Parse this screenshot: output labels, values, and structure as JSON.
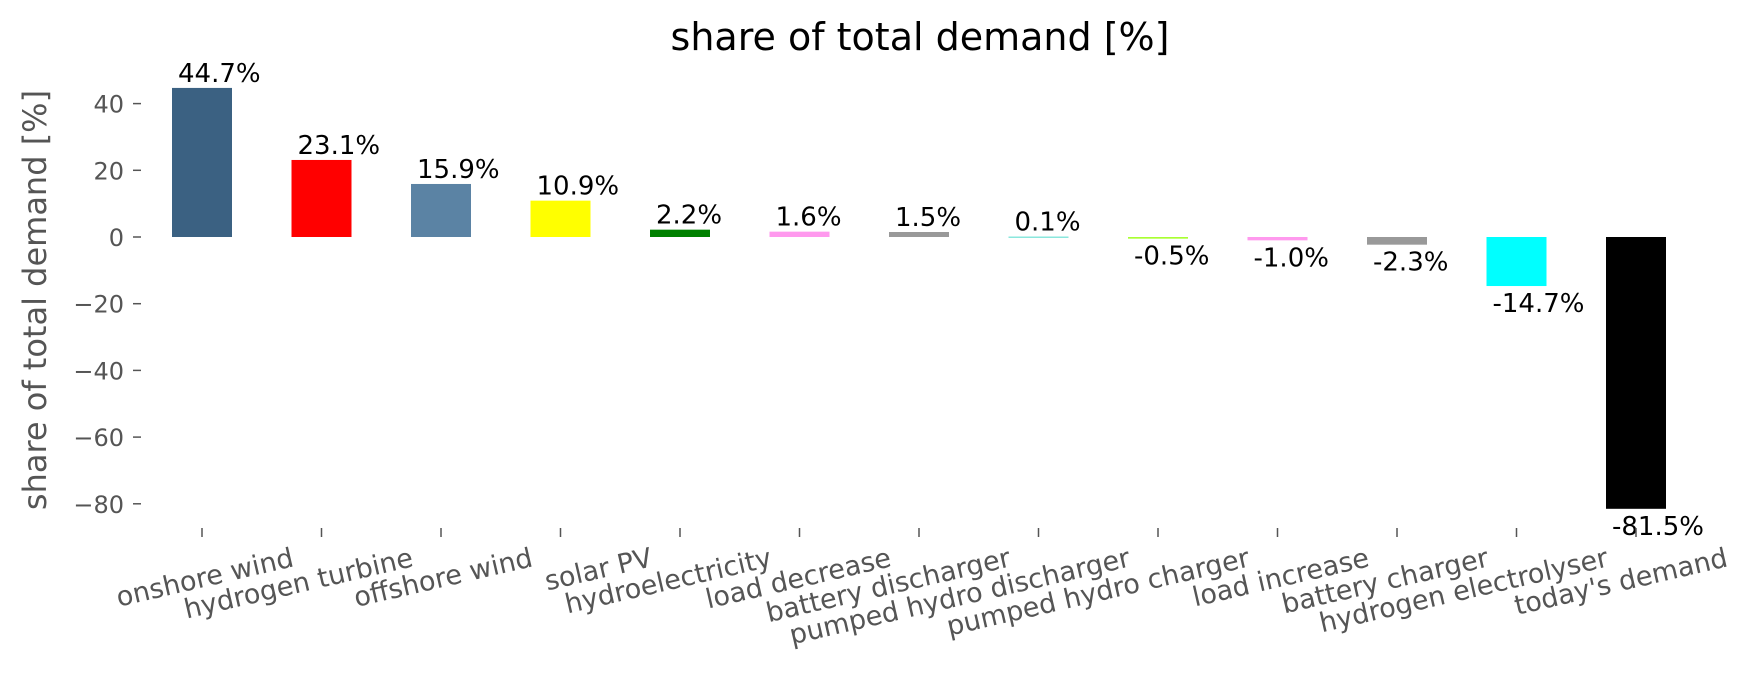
{
  "chart_data": {
    "type": "bar",
    "title": "share of total demand [%]",
    "ylabel": "share of total demand [%]",
    "xlabel": "",
    "ylim": [
      -88,
      50
    ],
    "yticks": [
      40,
      20,
      0,
      -20,
      -40,
      -60,
      -80
    ],
    "ytick_labels": [
      "40",
      "20",
      "0",
      "−20",
      "−40",
      "−60",
      "−80"
    ],
    "grid": false,
    "categories": [
      "onshore wind",
      "hydrogen turbine",
      "offshore wind",
      "solar PV",
      "hydroelectricity",
      "load decrease",
      "battery discharger",
      "pumped hydro discharger",
      "pumped hydro charger",
      "load increase",
      "battery charger",
      "hydrogen electrolyser",
      "today's demand"
    ],
    "values": [
      44.7,
      23.1,
      15.9,
      10.9,
      2.2,
      1.6,
      1.5,
      0.1,
      -0.5,
      -1.0,
      -2.3,
      -14.7,
      -81.5
    ],
    "data_labels": [
      "44.7%",
      "23.1%",
      "15.9%",
      "10.9%",
      "2.2%",
      "1.6%",
      "1.5%",
      "0.1%",
      "-0.5%",
      "-1.0%",
      "-2.3%",
      "-14.7%",
      "-81.5%"
    ],
    "colors": [
      "#3b6182",
      "#ff0000",
      "#5b83a4",
      "#ffff00",
      "#008000",
      "#ff99ee",
      "#999999",
      "#51dbcc",
      "#a9ff33",
      "#ff99ee",
      "#999999",
      "#00ffff",
      "#000000"
    ]
  }
}
